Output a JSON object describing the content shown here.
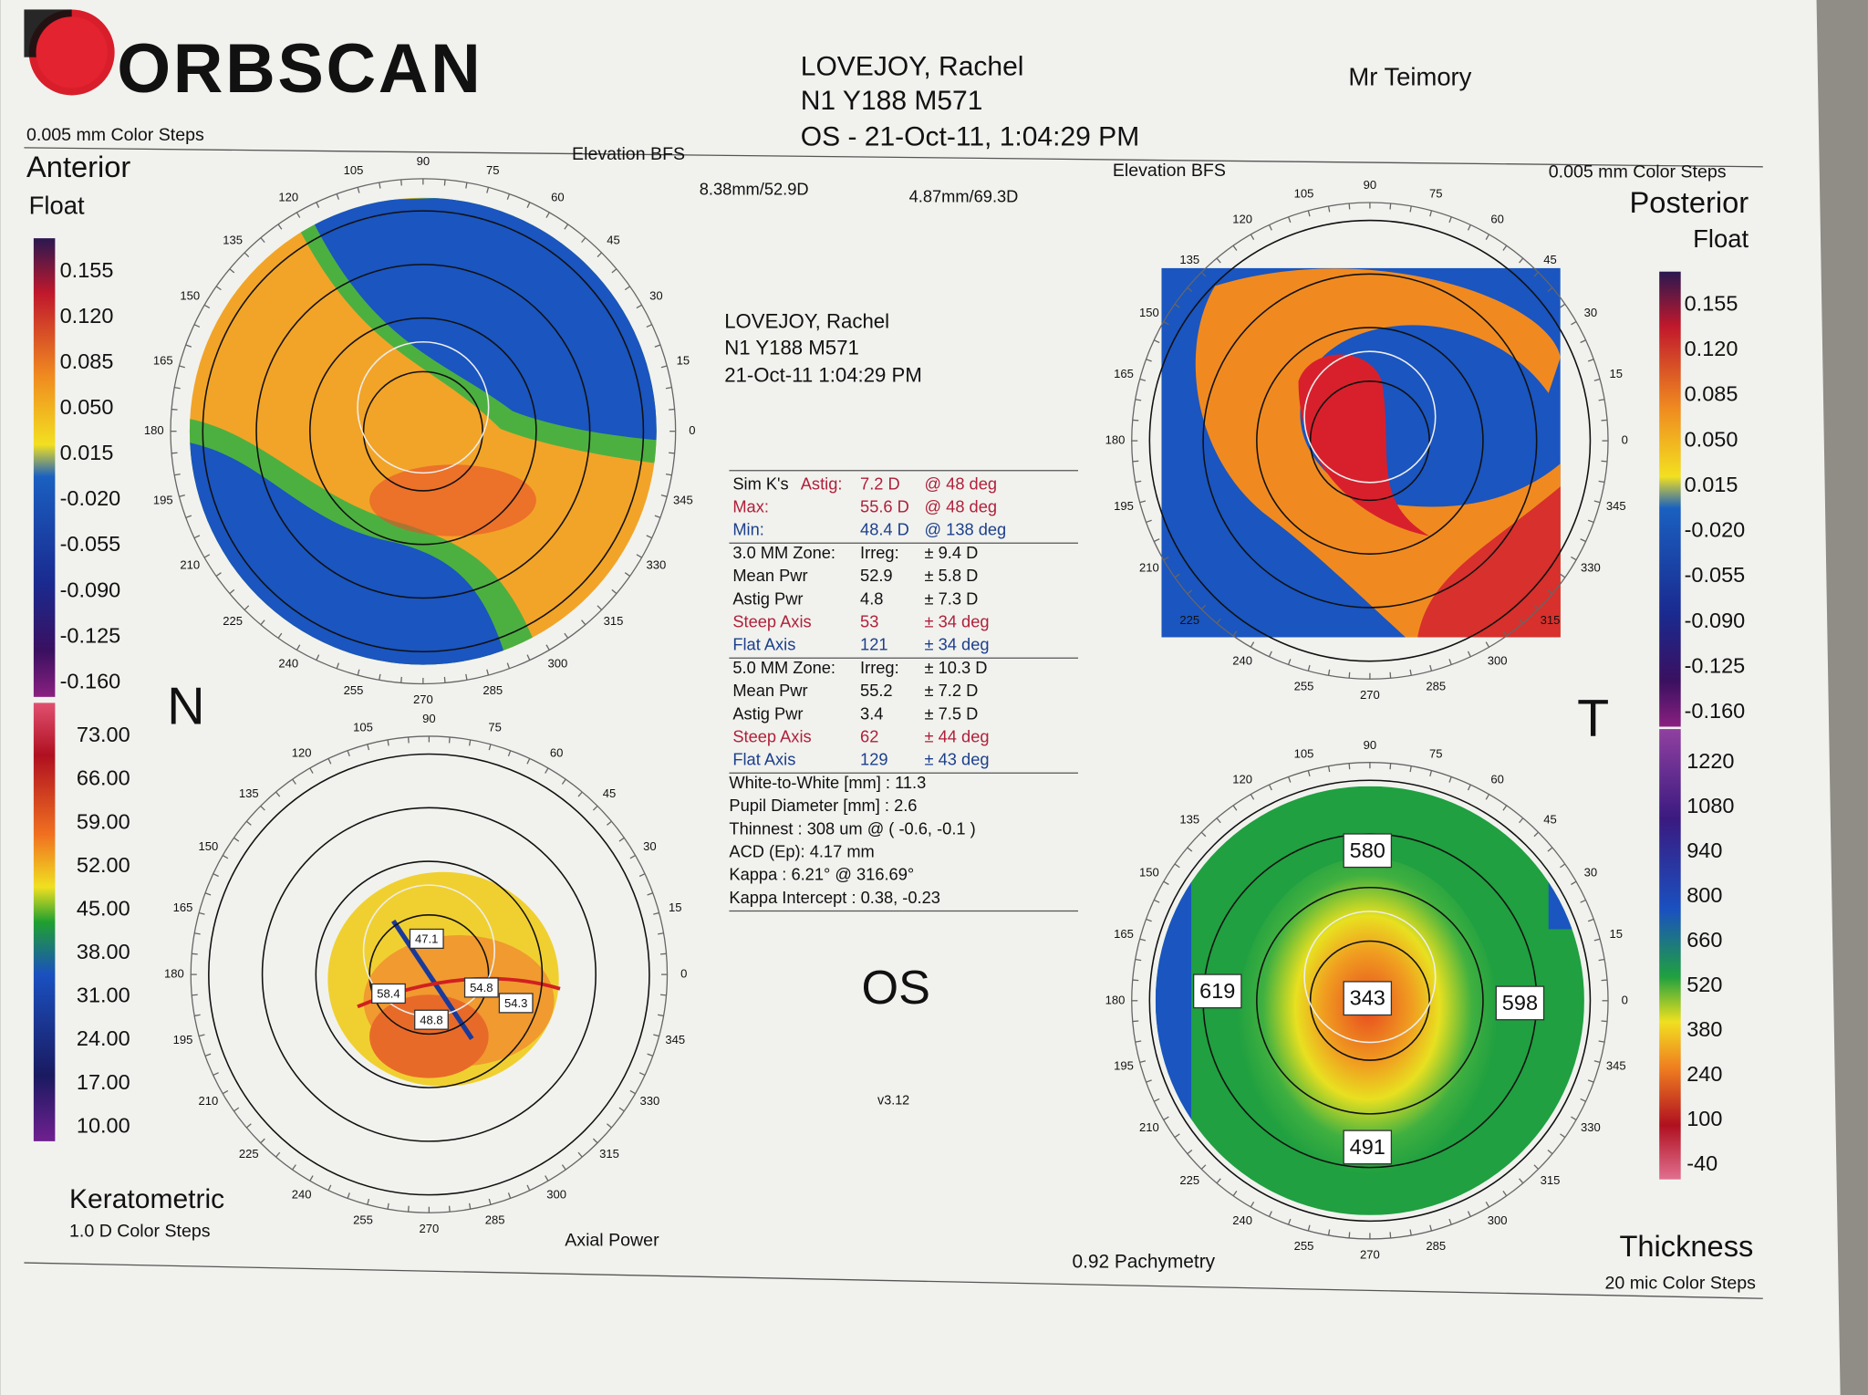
{
  "header": {
    "logo": "ORBSCAN",
    "patient": "LOVEJOY, Rachel",
    "id": "N1 Y188 M571",
    "exam": "OS - 21-Oct-11, 1:04:29 PM",
    "doctor": "Mr Teimory"
  },
  "angle_labels": [
    "0",
    "15",
    "30",
    "45",
    "60",
    "75",
    "90",
    "105",
    "120",
    "135",
    "150",
    "165",
    "180",
    "195",
    "210",
    "225",
    "240",
    "255",
    "270",
    "285",
    "300",
    "315",
    "330",
    "345"
  ],
  "maps": {
    "anterior": {
      "steps": "0.005 mm Color Steps",
      "title": "Anterior",
      "subtitle": "Float",
      "kind": "Elevation BFS",
      "bfs": "8.38mm/52.9D"
    },
    "posterior": {
      "steps": "0.005 mm Color Steps",
      "title": "Posterior",
      "subtitle": "Float",
      "kind": "Elevation BFS",
      "bfs": "4.87mm/69.3D"
    },
    "keratometric": {
      "title": "Keratometric",
      "steps": "1.0 D Color Steps",
      "kind": "Axial Power",
      "boxes": [
        "47.1",
        "58.4",
        "48.8",
        "54.8",
        "54.3"
      ]
    },
    "thickness": {
      "title": "Thickness",
      "steps": "20 mic Color Steps",
      "kind": "0.92 Pachymetry",
      "boxes": [
        "580",
        "619",
        "343",
        "598",
        "491"
      ]
    }
  },
  "scales": {
    "float": [
      "0.155",
      "0.120",
      "0.085",
      "0.050",
      "0.015",
      "-0.020",
      "-0.055",
      "-0.090",
      "-0.125",
      "-0.160"
    ],
    "keratometric": [
      "73.00",
      "66.00",
      "59.00",
      "52.00",
      "45.00",
      "38.00",
      "31.00",
      "24.00",
      "17.00",
      "10.00"
    ],
    "thickness": [
      "1220",
      "1080",
      "940",
      "800",
      "660",
      "520",
      "380",
      "240",
      "100",
      "-40"
    ]
  },
  "orientation": {
    "nasal": "N",
    "temporal": "T"
  },
  "center": {
    "patient": "LOVEJOY, Rachel",
    "id": "N1 Y188 M571",
    "date": "21-Oct-11 1:04:29 PM",
    "sections": [
      [
        {
          "cells": [
            "Sim K's",
            "Astig:",
            "7.2 D",
            "@ 48 deg"
          ],
          "color": "#b0203a"
        },
        {
          "cells": [
            "Max:",
            "55.6 D",
            "@ 48 deg"
          ],
          "color": "#b0203a"
        },
        {
          "cells": [
            "Min:",
            "48.4 D",
            "@ 138 deg"
          ],
          "color": "#1c3f8c"
        }
      ],
      [
        {
          "cells": [
            "3.0 MM Zone:",
            "Irreg:",
            "± 9.4 D"
          ],
          "color": "#111"
        },
        {
          "cells": [
            "Mean Pwr",
            "52.9",
            "± 5.8 D"
          ],
          "color": "#111"
        },
        {
          "cells": [
            "Astig Pwr",
            "4.8",
            "± 7.3 D"
          ],
          "color": "#111"
        },
        {
          "cells": [
            "Steep Axis",
            "53",
            "± 34 deg"
          ],
          "color": "#b0203a"
        },
        {
          "cells": [
            "Flat Axis",
            "121",
            "± 34 deg"
          ],
          "color": "#1c3f8c"
        }
      ],
      [
        {
          "cells": [
            "5.0 MM Zone:",
            "Irreg:",
            "± 10.3 D"
          ],
          "color": "#111"
        },
        {
          "cells": [
            "Mean Pwr",
            "55.2",
            "± 7.2 D"
          ],
          "color": "#111"
        },
        {
          "cells": [
            "Astig Pwr",
            "3.4",
            "± 7.5 D"
          ],
          "color": "#111"
        },
        {
          "cells": [
            "Steep Axis",
            "62",
            "± 44 deg"
          ],
          "color": "#b0203a"
        },
        {
          "cells": [
            "Flat Axis",
            "129",
            "± 43 deg"
          ],
          "color": "#1c3f8c"
        }
      ],
      [
        {
          "cells": [
            "White-to-White [mm] : 11.3"
          ],
          "color": "#111"
        },
        {
          "cells": [
            "Pupil Diameter [mm] : 2.6"
          ],
          "color": "#111"
        },
        {
          "cells": [
            "Thinnest : 308 um @ ( -0.6, -0.1 )"
          ],
          "color": "#111"
        },
        {
          "cells": [
            "ACD (Ep): 4.17 mm"
          ],
          "color": "#111"
        },
        {
          "cells": [
            "Kappa : 6.21° @ 316.69°"
          ],
          "color": "#111"
        },
        {
          "cells": [
            "Kappa Intercept : 0.38, -0.23"
          ],
          "color": "#111"
        }
      ]
    ],
    "eye": "OS",
    "version": "v3.12"
  }
}
